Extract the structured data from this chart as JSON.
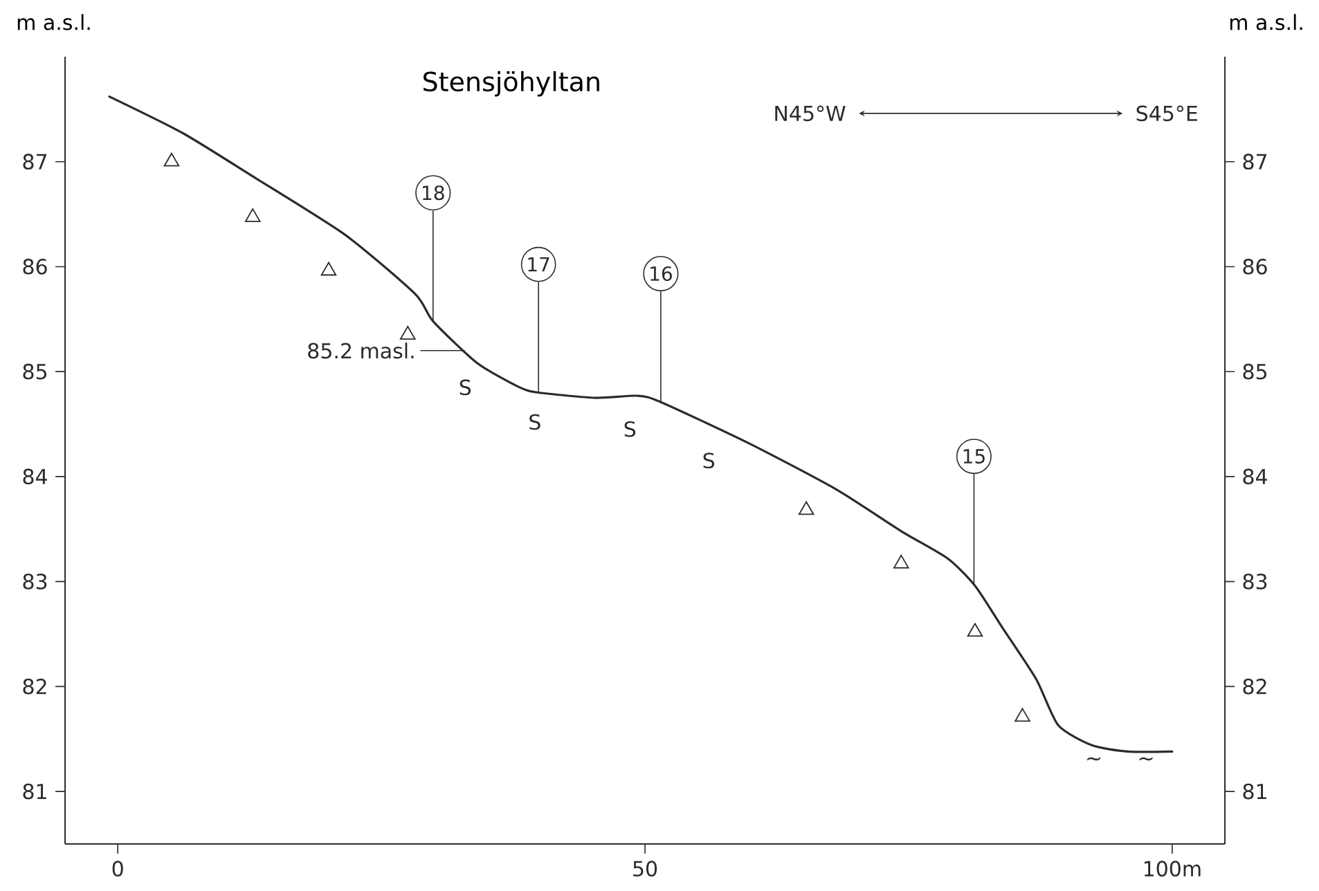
{
  "chart_data": {
    "type": "line",
    "title": "Stensjöhyltan",
    "ylabel": "m a.s.l.",
    "y2label": "m a.s.l.",
    "xlim": [
      -5,
      105
    ],
    "xticks": [
      0,
      50,
      {
        "value": 100,
        "label": "100m"
      }
    ],
    "ylim": [
      80.5,
      88
    ],
    "yticks": [
      81,
      82,
      83,
      84,
      85,
      86,
      87
    ],
    "y2lim": [
      80.5,
      88
    ],
    "y2ticks": [
      81,
      82,
      83,
      84,
      85,
      86,
      87
    ],
    "series": [
      {
        "marker": "none",
        "color": "#2b2b2b",
        "x": [
          -0.8,
          6.2,
          12.8,
          21.6,
          28.2,
          29.9,
          34.1,
          38.1,
          39.9,
          45.3,
          49.3,
          51.5,
          59.8,
          68.1,
          74.3,
          78.7,
          81.3,
          83.9,
          87.1,
          89.2,
          92.4,
          95.8,
          100.0
        ],
        "values": [
          87.62,
          87.27,
          86.86,
          86.3,
          85.74,
          85.48,
          85.08,
          84.85,
          84.8,
          84.75,
          84.77,
          84.71,
          84.32,
          83.88,
          83.48,
          83.22,
          82.96,
          82.56,
          82.07,
          81.63,
          81.44,
          81.38,
          81.38
        ]
      },
      {
        "type": "scatter",
        "marker": "triangle",
        "color": "#2b2b2b",
        "x": [
          5.1,
          12.8,
          20.0,
          27.5
        ],
        "values": [
          87.0,
          86.47,
          85.96,
          85.35
        ]
      },
      {
        "type": "scatter",
        "marker": "triangle",
        "color": "#2b2b2b",
        "x": [
          65.3,
          74.3,
          81.3,
          85.8
        ],
        "values": [
          83.68,
          83.17,
          82.52,
          81.71
        ]
      }
    ],
    "annotations": [
      {
        "text": "18",
        "x": 29.9,
        "y": 85.48
      },
      {
        "text": "17",
        "x": 39.9,
        "y": 84.8
      },
      {
        "text": "16",
        "x": 51.5,
        "y": 84.71
      },
      {
        "text": "15",
        "x": 81.2,
        "y": 82.97
      },
      {
        "text": "85.2 masl.",
        "x": 32.9,
        "y": 85.2
      },
      "S",
      "S",
      "S",
      "S",
      "~",
      "~",
      "N45°W",
      "S45°E"
    ]
  }
}
